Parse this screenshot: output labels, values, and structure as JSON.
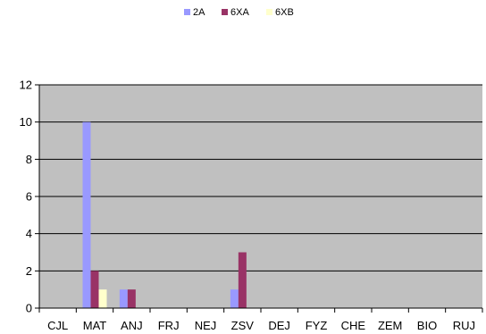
{
  "chart_data": {
    "type": "bar",
    "categories": [
      "CJL",
      "MAT",
      "ANJ",
      "FRJ",
      "NEJ",
      "ZSV",
      "DEJ",
      "FYZ",
      "CHE",
      "ZEM",
      "BIO",
      "RUJ"
    ],
    "series": [
      {
        "name": "2A",
        "color": "#9999ff",
        "values": [
          0,
          10,
          1,
          0,
          0,
          1,
          0,
          0,
          0,
          0,
          0,
          0
        ]
      },
      {
        "name": "6XA",
        "color": "#993366",
        "values": [
          0,
          2,
          1,
          0,
          0,
          3,
          0,
          0,
          0,
          0,
          0,
          0
        ]
      },
      {
        "name": "6XB",
        "color": "#ffffcc",
        "values": [
          0,
          1,
          0,
          0,
          0,
          0,
          0,
          0,
          0,
          0,
          0,
          0
        ]
      }
    ],
    "ylim": [
      0,
      12
    ],
    "yticks": [
      0,
      2,
      4,
      6,
      8,
      10,
      12
    ],
    "grid": true,
    "legend": "top-center",
    "plot_background": "#c0c0c0"
  }
}
